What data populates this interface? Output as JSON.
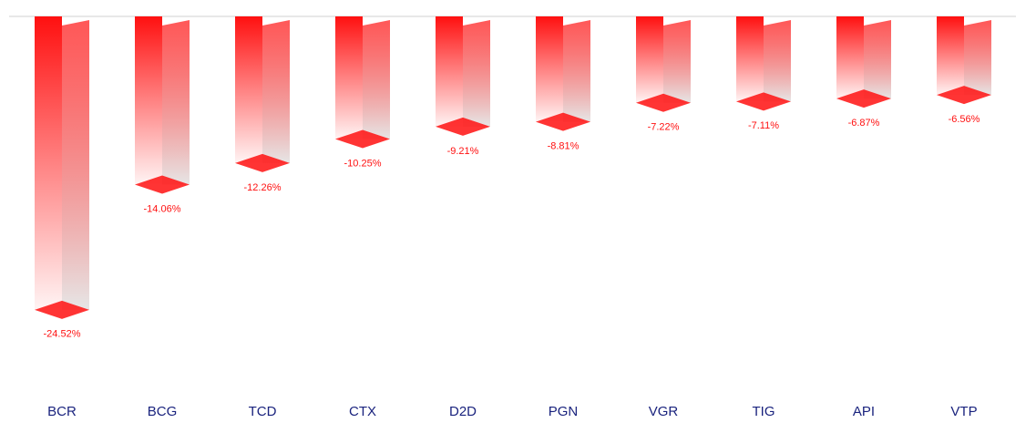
{
  "chart_data": {
    "type": "bar",
    "categories": [
      "BCR",
      "BCG",
      "TCD",
      "CTX",
      "D2D",
      "PGN",
      "VGR",
      "TIG",
      "API",
      "VTP"
    ],
    "values": [
      -24.52,
      -14.06,
      -12.26,
      -10.25,
      -9.21,
      -8.81,
      -7.22,
      -7.11,
      -6.87,
      -6.56
    ],
    "value_labels": [
      "-24.52%",
      "-14.06%",
      "-12.26%",
      "-10.25%",
      "-9.21%",
      "-8.81%",
      "-7.22%",
      "-7.11%",
      "-6.87%",
      "-6.56%"
    ],
    "color": "#ff1010",
    "ylim": [
      -32,
      0
    ]
  }
}
